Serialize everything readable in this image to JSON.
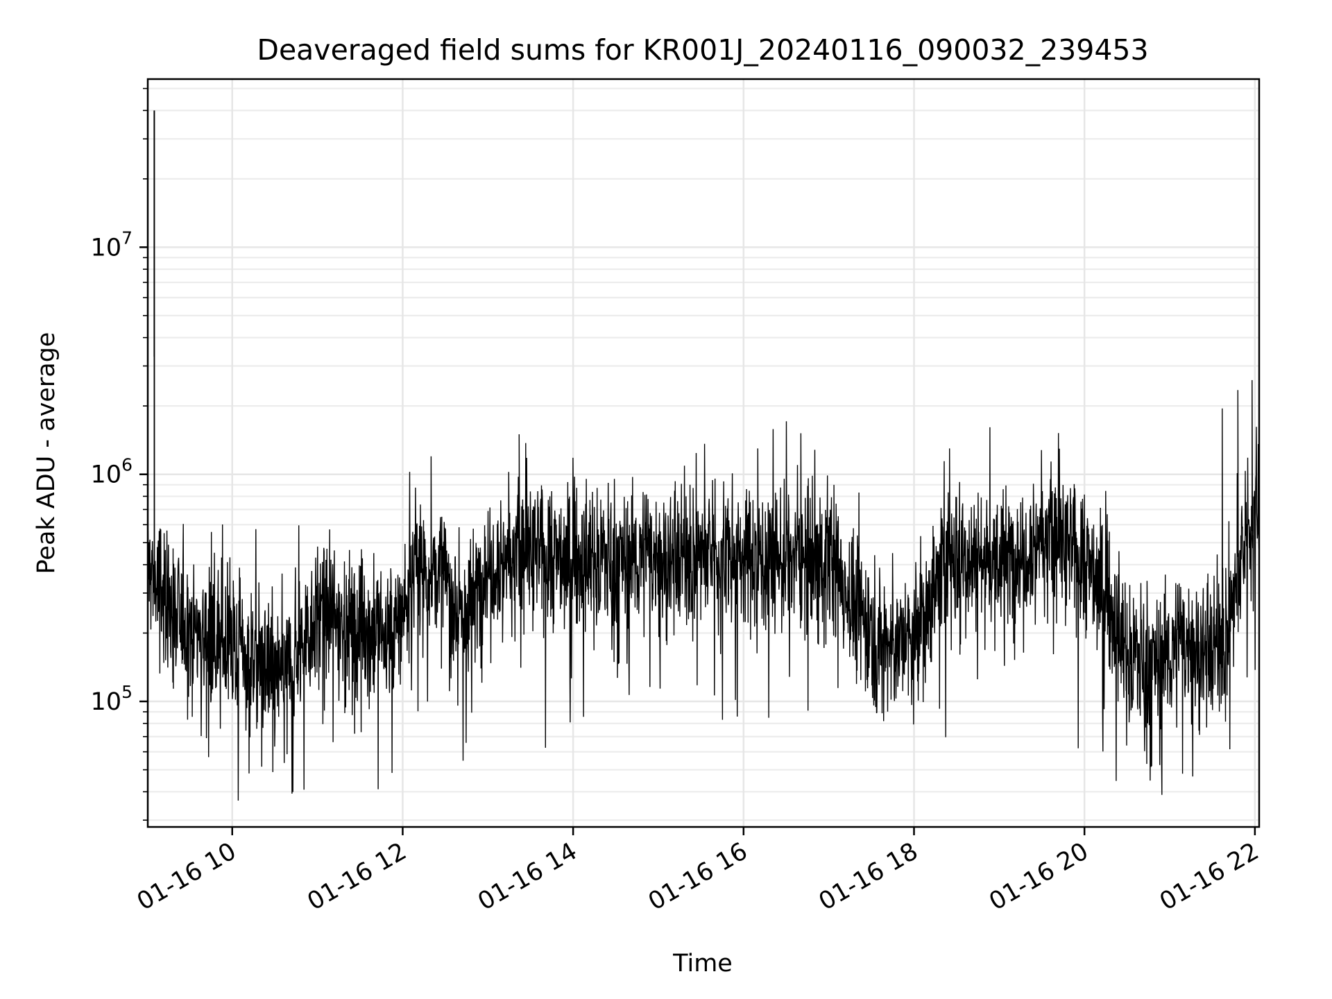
{
  "chart_data": {
    "type": "line",
    "title": "Deaveraged field sums for KR001J_20240116_090032_239453",
    "xlabel": "Time",
    "ylabel": "Peak ADU - average",
    "x_axis": {
      "kind": "datetime",
      "range": [
        "2024-01-16T09:00:32",
        "2024-01-16T22:03:00"
      ],
      "ticks": [
        "01-16 10",
        "01-16 12",
        "01-16 14",
        "01-16 16",
        "01-16 18",
        "01-16 20",
        "01-16 22"
      ],
      "tick_times": [
        "2024-01-16T10:00",
        "2024-01-16T12:00",
        "2024-01-16T14:00",
        "2024-01-16T16:00",
        "2024-01-16T18:00",
        "2024-01-16T20:00",
        "2024-01-16T22:00"
      ],
      "tick_rotation_deg": 30
    },
    "y_axis": {
      "scale": "log",
      "range": [
        28000,
        55000000
      ],
      "ticks": [
        {
          "base": "10",
          "exp": "5",
          "value": 100000
        },
        {
          "base": "10",
          "exp": "6",
          "value": 1000000
        },
        {
          "base": "10",
          "exp": "7",
          "value": 10000000
        }
      ]
    },
    "grid": {
      "major": true,
      "minor": true
    },
    "colors": {
      "line": "#000000",
      "grid": "#e6e6e6"
    },
    "series": [
      {
        "x_time": [
          "2024-01-16T09:00",
          "2024-01-16T09:10",
          "2024-01-16T09:20",
          "2024-01-16T09:30",
          "2024-01-16T09:40",
          "2024-01-16T10:00",
          "2024-01-16T10:20",
          "2024-01-16T10:30",
          "2024-01-16T10:40",
          "2024-01-16T11:00",
          "2024-01-16T11:20",
          "2024-01-16T11:40",
          "2024-01-16T11:55",
          "2024-01-16T12:10",
          "2024-01-16T12:30",
          "2024-01-16T12:45",
          "2024-01-16T13:00",
          "2024-01-16T13:30",
          "2024-01-16T14:00",
          "2024-01-16T14:30",
          "2024-01-16T15:00",
          "2024-01-16T15:30",
          "2024-01-16T16:00",
          "2024-01-16T16:30",
          "2024-01-16T17:00",
          "2024-01-16T17:20",
          "2024-01-16T17:40",
          "2024-01-16T18:00",
          "2024-01-16T18:20",
          "2024-01-16T18:40",
          "2024-01-16T19:00",
          "2024-01-16T19:30",
          "2024-01-16T20:00",
          "2024-01-16T20:15",
          "2024-01-16T20:30",
          "2024-01-16T20:50",
          "2024-01-16T21:10",
          "2024-01-16T21:30",
          "2024-01-16T21:40",
          "2024-01-16T21:55",
          "2024-01-16T22:03"
        ],
        "y": [
          400000,
          300000,
          230000,
          220000,
          200000,
          170000,
          150000,
          130000,
          140000,
          250000,
          220000,
          200000,
          200000,
          400000,
          350000,
          220000,
          430000,
          450000,
          420000,
          430000,
          430000,
          450000,
          430000,
          430000,
          450000,
          250000,
          180000,
          180000,
          400000,
          450000,
          400000,
          550000,
          420000,
          300000,
          160000,
          150000,
          180000,
          170000,
          200000,
          550000,
          850000
        ],
        "noise_log10_spread": 0.28,
        "spikes": [
          {
            "time": "2024-01-16T09:05",
            "value": 40000000
          },
          {
            "time": "2024-01-16T09:05",
            "value": 3300000
          },
          {
            "time": "2024-01-16T21:37",
            "value": 1950000
          },
          {
            "time": "2024-01-16T21:48",
            "value": 2350000
          },
          {
            "time": "2024-01-16T21:58",
            "value": 2600000
          },
          {
            "time": "2024-01-16T13:22",
            "value": 1500000
          },
          {
            "time": "2024-01-16T16:10",
            "value": 1300000
          },
          {
            "time": "2024-01-16T18:25",
            "value": 1300000
          },
          {
            "time": "2024-01-16T12:20",
            "value": 1200000
          }
        ]
      }
    ]
  }
}
